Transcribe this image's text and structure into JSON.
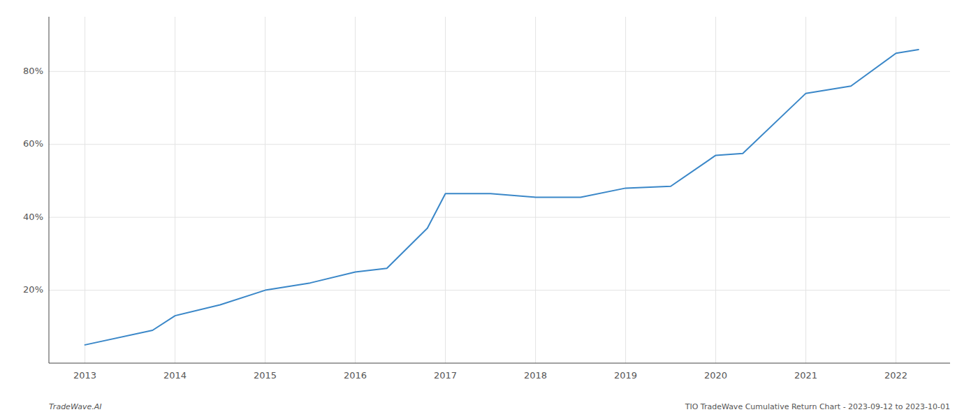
{
  "chart_data": {
    "type": "line",
    "x": [
      2013,
      2013.75,
      2014,
      2014.5,
      2015,
      2015.5,
      2016,
      2016.35,
      2016.8,
      2017,
      2017.5,
      2018,
      2018.5,
      2019,
      2019.5,
      2020,
      2020.3,
      2021,
      2021.5,
      2022,
      2022.25
    ],
    "values": [
      5,
      9,
      13,
      16,
      20,
      22,
      25,
      26,
      37,
      46.5,
      46.5,
      45.5,
      45.5,
      48,
      48.5,
      57,
      57.5,
      74,
      76,
      85,
      86
    ],
    "color": "#3a87c8",
    "xlim": [
      2012.6,
      2022.6
    ],
    "ylim": [
      0,
      95
    ],
    "xticks": [
      2013,
      2014,
      2015,
      2016,
      2017,
      2018,
      2019,
      2020,
      2021,
      2022
    ],
    "yticks": [
      {
        "value": 20,
        "label": "20%"
      },
      {
        "value": 40,
        "label": "40%"
      },
      {
        "value": 60,
        "label": "60%"
      },
      {
        "value": 80,
        "label": "80%"
      }
    ],
    "grid": true,
    "annotations": [
      "TradeWave.AI",
      "TIO TradeWave Cumulative Return Chart - 2023-09-12 to 2023-10-01"
    ]
  }
}
